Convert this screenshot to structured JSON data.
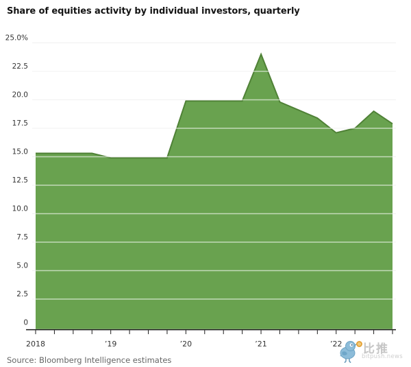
{
  "title": "Share of equities activity by individual investors, quarterly",
  "source": "Source: Bloomberg Intelligence estimates",
  "watermark": {
    "brand_cn": "比推",
    "brand_domain": "bitpush.news",
    "bird_icon": "bird-mascot-icon",
    "bird_color": "#8cbcd9",
    "bird_outline_color": "#6da3c4",
    "coin_color": "#f2c979",
    "coin_ring_color": "#e39c2d",
    "text_color": "#c6c6c6"
  },
  "chart_data": {
    "type": "area",
    "title": "Share of equities activity by individual investors, quarterly",
    "unit": "%",
    "x": [
      "2018 Q1",
      "2018 Q2",
      "2018 Q3",
      "2018 Q4",
      "2019 Q1",
      "2019 Q2",
      "2019 Q3",
      "2019 Q4",
      "2020 Q1",
      "2020 Q2",
      "2020 Q3",
      "2020 Q4",
      "2021 Q1",
      "2021 Q2",
      "2021 Q3",
      "2021 Q4",
      "2022 Q1",
      "2022 Q2",
      "2022 Q3",
      "2022 Q4"
    ],
    "values": [
      15.3,
      15.3,
      15.3,
      15.3,
      14.9,
      14.9,
      14.9,
      14.9,
      19.9,
      19.9,
      19.9,
      19.9,
      24.0,
      19.8,
      19.1,
      18.4,
      17.1,
      17.5,
      19.0,
      17.9
    ],
    "x_axis_tick_labels": [
      "2018",
      "’19",
      "’20",
      "’21",
      "’22"
    ],
    "x_axis_year_point_indices": [
      0,
      4,
      8,
      12,
      16
    ],
    "y_ticks": [
      0,
      2.5,
      5,
      7.5,
      10,
      12.5,
      15,
      17.5,
      20,
      22.5,
      25
    ],
    "y_tick_labels": [
      "0",
      "2.5",
      "5.0",
      "7.5",
      "10.0",
      "12.5",
      "15.0",
      "17.5",
      "20.0",
      "22.5",
      "25.0%"
    ],
    "ylim": [
      0,
      25
    ],
    "grid": true,
    "legend": "none",
    "area_color": "#69a24f",
    "area_edge_color": "#4f8136",
    "gridline_color": "#d9d9d9",
    "gridline_over_area_color": "rgba(255,255,255,0.6)",
    "axis_color": "#1a1a1a",
    "tick_label_color": "#333333"
  }
}
